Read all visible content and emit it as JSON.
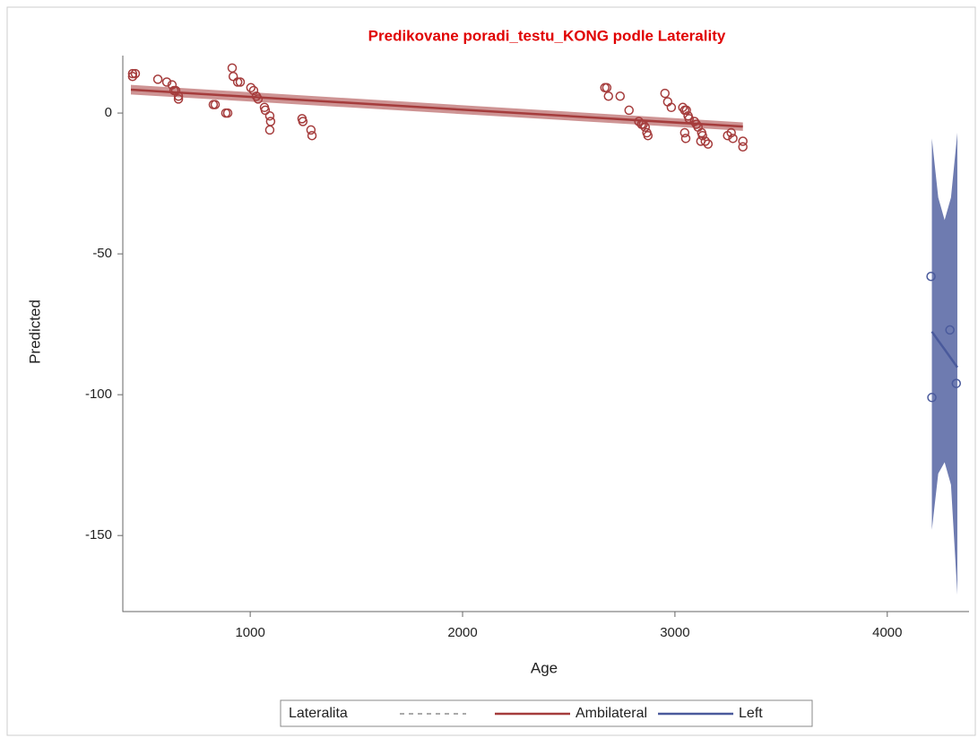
{
  "chart_data": {
    "type": "scatter",
    "title": "Predikovane poradi_testu_KONG podle Laterality",
    "x_label": "Age",
    "y_label": "Predicted",
    "xlim": [
      400,
      4385
    ],
    "ylim": [
      -177,
      20.4
    ],
    "xticks": [
      1000,
      2000,
      3000,
      4000
    ],
    "yticks": [
      0,
      -50,
      -100,
      -150
    ],
    "legend_title": "Lateralita",
    "series": [
      {
        "name": "Ambilateral",
        "color": "#a53c3c",
        "x": [
          446,
          459,
          446,
          565,
          607,
          632,
          641,
          649,
          662,
          662,
          826,
          835,
          885,
          894,
          915,
          920,
          941,
          953,
          1003,
          1016,
          1029,
          1037,
          1067,
          1071,
          1092,
          1096,
          1092,
          1244,
          1248,
          1286,
          1291,
          2670,
          2679,
          2687,
          2742,
          2784,
          2830,
          2843,
          2851,
          2860,
          2868,
          2873,
          2953,
          2966,
          2983,
          3037,
          3046,
          3054,
          3062,
          3067,
          3092,
          3101,
          3109,
          3130,
          3143,
          3156,
          3122,
          3126,
          3046,
          3051,
          3248,
          3265,
          3273,
          3320,
          3320
        ],
        "values": [
          14,
          14,
          13,
          12,
          11,
          10,
          8,
          8,
          6,
          5,
          3,
          3,
          0,
          0,
          16,
          13,
          11,
          11,
          9,
          8,
          6,
          5,
          2,
          1,
          -1,
          -3,
          -6,
          -2,
          -3,
          -6,
          -8,
          9,
          9,
          6,
          6,
          1,
          -3,
          -4,
          -4,
          -5,
          -7,
          -8,
          7,
          4,
          2,
          2,
          1,
          1,
          -1,
          -2,
          -3,
          -4,
          -5,
          -8,
          -10,
          -11,
          -10,
          -7,
          -7,
          -9,
          -8,
          -7,
          -9,
          -10,
          -12
        ],
        "fit": {
          "x": [
            438,
            3320
          ],
          "values": [
            8.3,
            -4.8
          ],
          "upper": [
            10,
            -3.3
          ],
          "lower": [
            6.6,
            -6.3
          ]
        }
      },
      {
        "name": "Left",
        "color": "#4a5a9c",
        "x": [
          4206,
          4295,
          4210,
          4325
        ],
        "values": [
          -58,
          -77,
          -101,
          -96
        ],
        "fit": {
          "x": [
            4210,
            4240,
            4270,
            4300,
            4330
          ],
          "values": [
            -77.6,
            -80.8,
            -83.9,
            -87.1,
            -90.3
          ],
          "upper": [
            -9,
            -30,
            -38,
            -30,
            -7
          ],
          "lower": [
            -148,
            -128,
            -124,
            -132,
            -171
          ]
        }
      }
    ]
  }
}
